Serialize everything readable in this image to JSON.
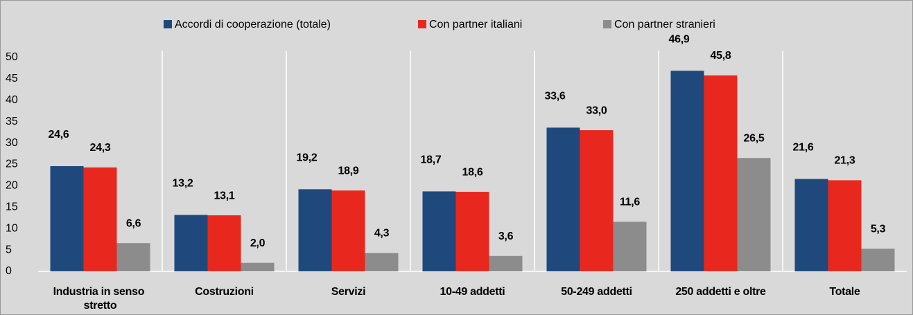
{
  "chart_data": {
    "type": "bar",
    "categories": [
      "Industria in senso stretto",
      "Costruzioni",
      "Servizi",
      "10-49 addetti",
      "50-249 addetti",
      "250 addetti e oltre",
      "Totale"
    ],
    "series": [
      {
        "name": "Accordi di cooperazione (totale)",
        "color": "#1f497d",
        "values": [
          24.6,
          13.2,
          19.2,
          18.7,
          33.6,
          46.9,
          21.6
        ],
        "value_labels": [
          "24,6",
          "13,2",
          "19,2",
          "18,7",
          "33,6",
          "46,9",
          "21,6"
        ]
      },
      {
        "name": "Con partner italiani",
        "color": "#e8281e",
        "values": [
          24.3,
          13.1,
          18.9,
          18.6,
          33.0,
          45.8,
          21.3
        ],
        "value_labels": [
          "24,3",
          "13,1",
          "18,9",
          "18,6",
          "33,0",
          "45,8",
          "21,3"
        ]
      },
      {
        "name": "Con partner stranieri",
        "color": "#8c8c8c",
        "values": [
          6.6,
          2.0,
          4.3,
          3.6,
          11.6,
          26.5,
          5.3
        ],
        "value_labels": [
          "6,6",
          "2,0",
          "4,3",
          "3,6",
          "11,6",
          "26,5",
          "5,3"
        ]
      }
    ],
    "ylim": [
      0,
      50
    ],
    "yticks": [
      0,
      5,
      10,
      15,
      20,
      25,
      30,
      35,
      40,
      45,
      50
    ],
    "legend": "top"
  }
}
